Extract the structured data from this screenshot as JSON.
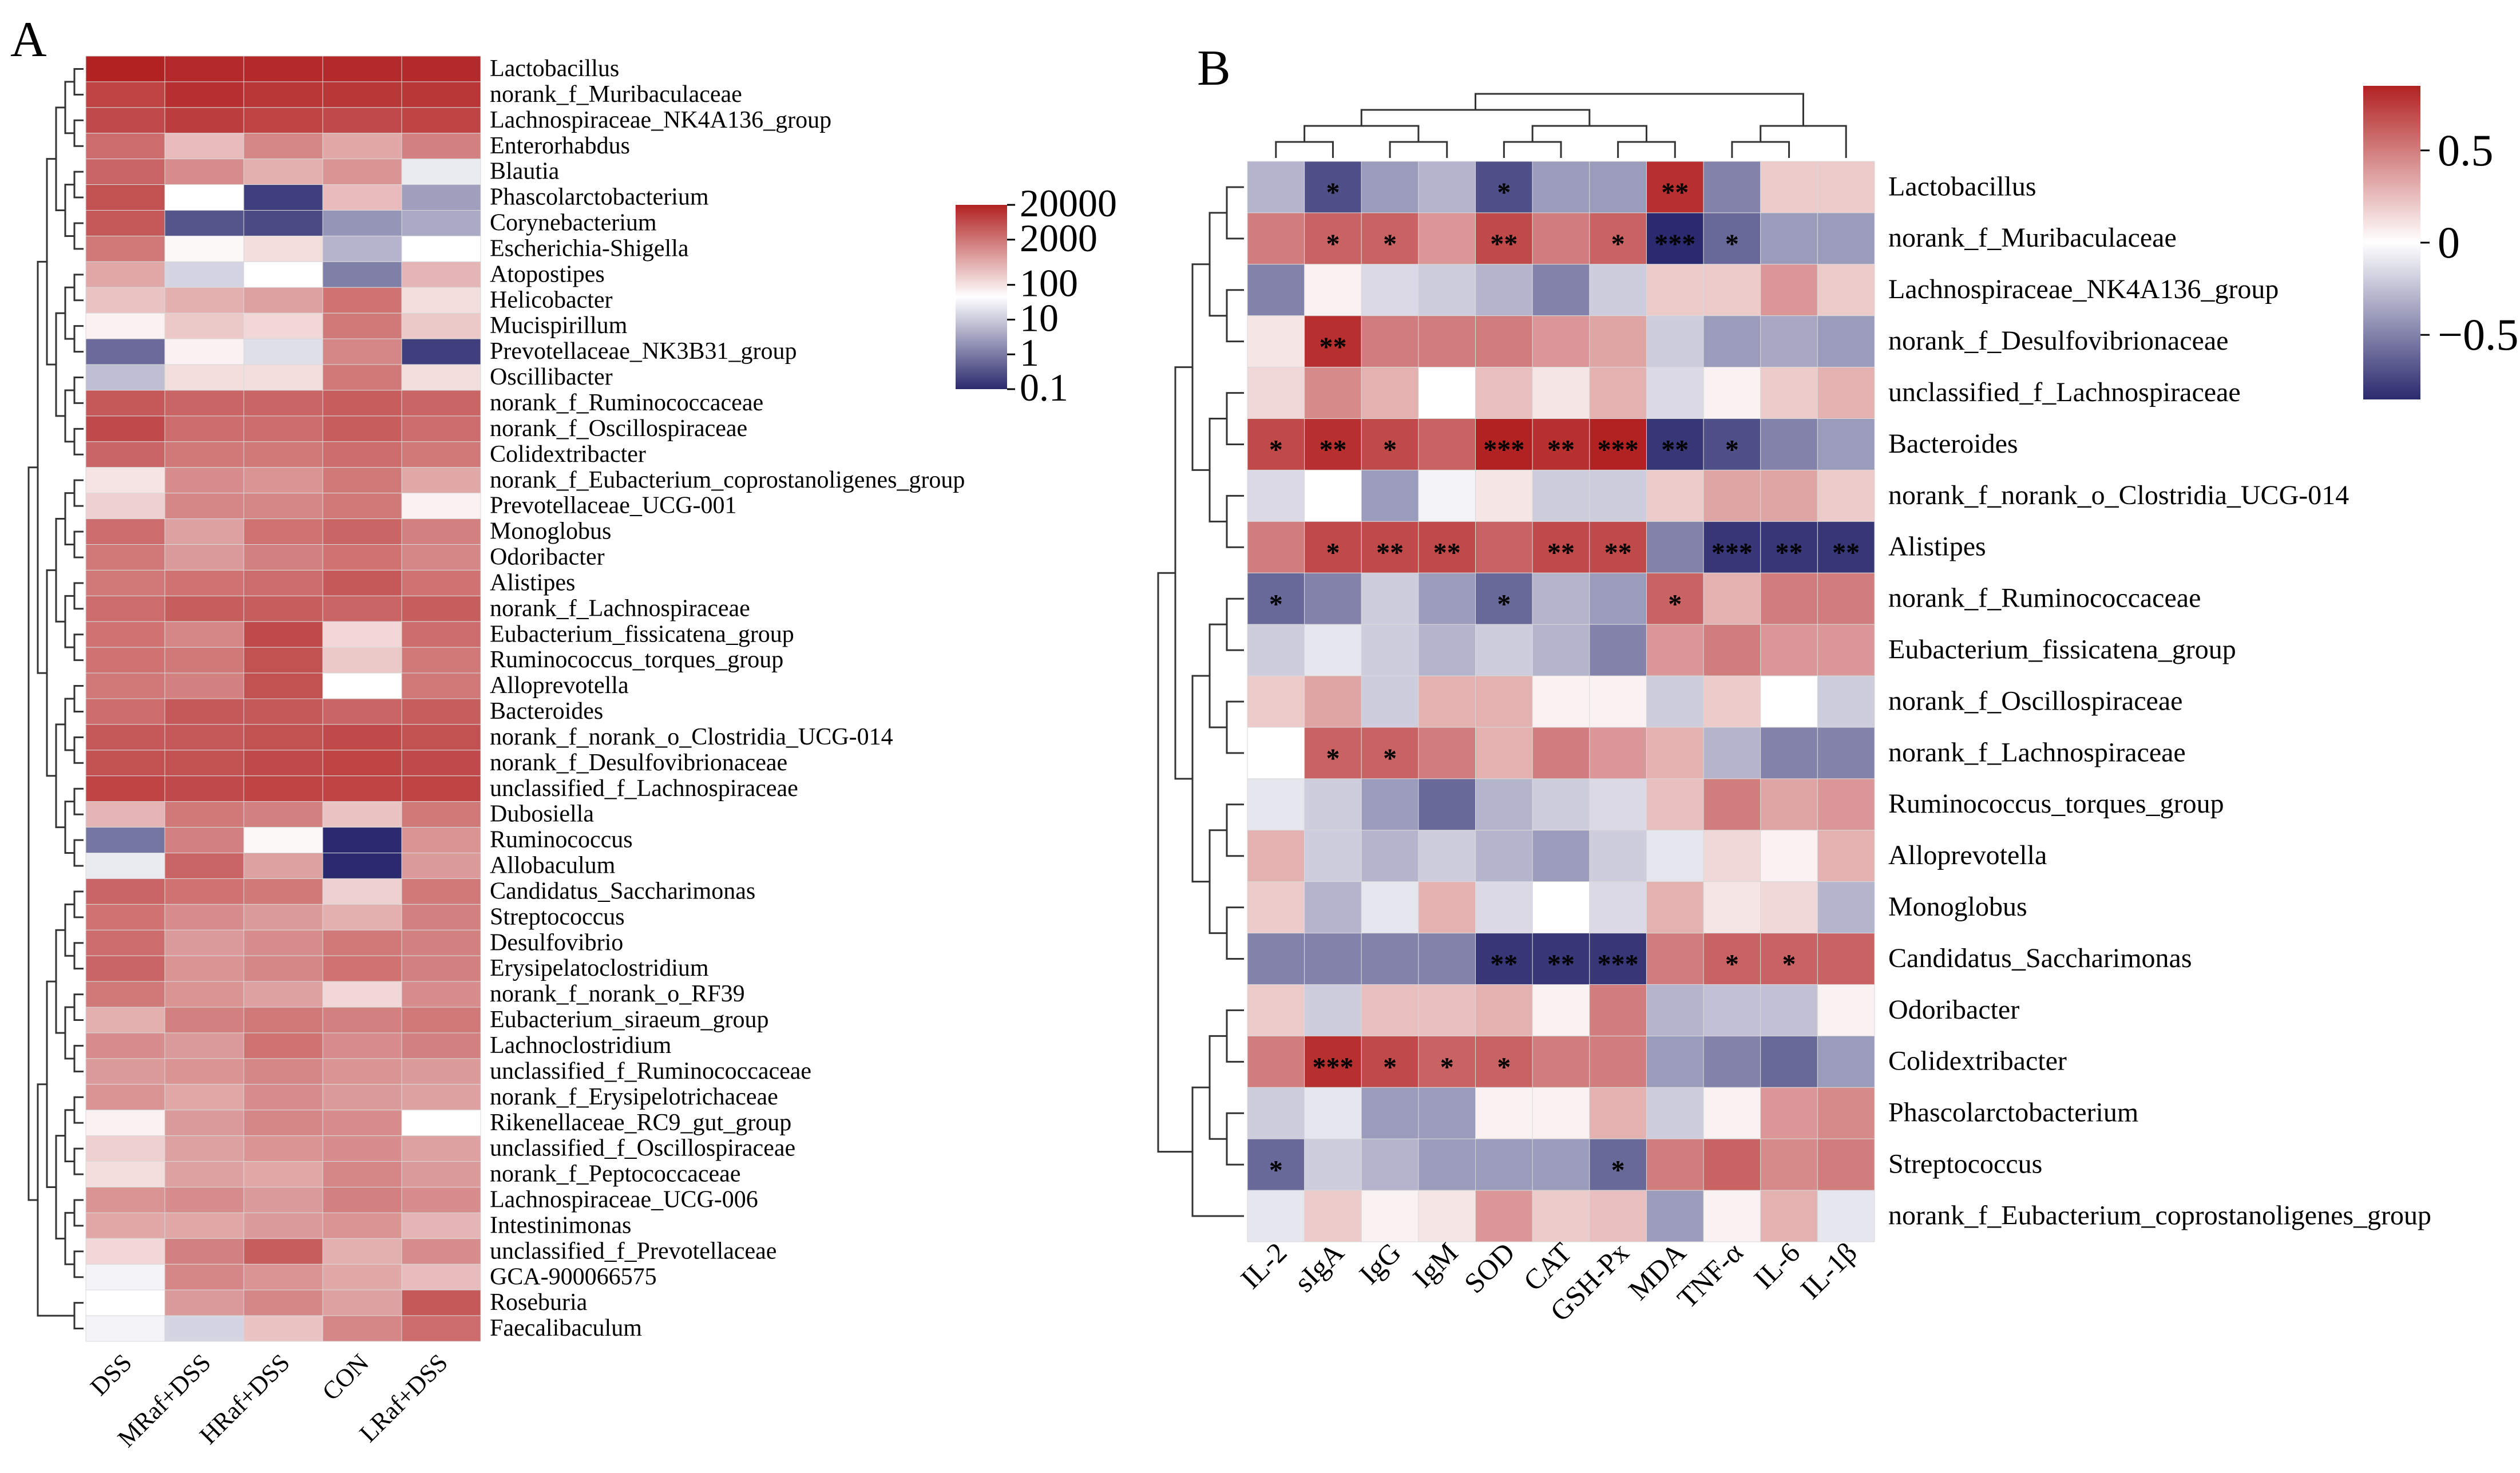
{
  "chart_data": [
    {
      "panel": "A",
      "type": "heatmap",
      "title": "",
      "columns": [
        "DSS",
        "MRaf+DSS",
        "HRaf+DSS",
        "CON",
        "LRaf+DSS"
      ],
      "rows": [
        "Lactobacillus",
        "norank_f_Muribaculaceae",
        "Lachnospiraceae_NK4A136_group",
        "Enterorhabdus",
        "Blautia",
        "Phascolarctobacterium",
        "Corynebacterium",
        "Escherichia-Shigella",
        "Atopostipes",
        "Helicobacter",
        "Mucispirillum",
        "Prevotellaceae_NK3B31_group",
        "Oscillibacter",
        "norank_f_Ruminococcaceae",
        "norank_f_Oscillospiraceae",
        "Colidextribacter",
        "norank_f_Eubacterium_coprostanoligenes_group",
        "Prevotellaceae_UCG-001",
        "Monoglobus",
        "Odoribacter",
        "Alistipes",
        "norank_f_Lachnospiraceae",
        "Eubacterium_fissicatena_group",
        "Ruminococcus_torques_group",
        "Alloprevotella",
        "Bacteroides",
        "norank_f_norank_o_Clostridia_UCG-014",
        "norank_f_Desulfovibrionaceae",
        "unclassified_f_Lachnospiraceae",
        "Dubosiella",
        "Ruminococcus",
        "Allobaculum",
        "Candidatus_Saccharimonas",
        "Streptococcus",
        "Desulfovibrio",
        "Erysipelatoclostridium",
        "norank_f_norank_o_RF39",
        "Eubacterium_siraeum_group",
        "Lachnoclostridium",
        "unclassified_f_Ruminococcaceae",
        "norank_f_Erysipelotrichaceae",
        "Rikenellaceae_RC9_gut_group",
        "unclassified_f_Oscillospiraceae",
        "norank_f_Peptococcaceae",
        "Lachnospiraceae_UCG-006",
        "Intestinimonas",
        "unclassified_f_Prevotellaceae",
        "GCA-900066575",
        "Roseburia",
        "Faecalibaculum"
      ],
      "values_log10": [
        [
          4.3,
          4.2,
          4.2,
          4.2,
          4.2
        ],
        [
          3.8,
          4.1,
          4.0,
          4.0,
          4.0
        ],
        [
          3.7,
          3.9,
          3.8,
          3.7,
          3.8
        ],
        [
          3.2,
          2.0,
          2.8,
          2.3,
          2.9
        ],
        [
          3.3,
          2.7,
          2.2,
          2.6,
          0.8
        ],
        [
          3.6,
          1.0,
          -0.8,
          2.0,
          0.1
        ],
        [
          3.5,
          -0.6,
          -0.7,
          0.0,
          0.2
        ],
        [
          3.0,
          1.1,
          1.5,
          0.3,
          1.0
        ],
        [
          2.3,
          0.6,
          1.0,
          -0.2,
          2.1
        ],
        [
          1.9,
          2.2,
          2.4,
          3.1,
          1.5
        ],
        [
          1.2,
          1.8,
          1.6,
          3.0,
          1.8
        ],
        [
          -0.4,
          1.2,
          0.7,
          2.8,
          -0.8
        ],
        [
          0.4,
          1.5,
          1.5,
          3.0,
          1.5
        ],
        [
          3.5,
          3.3,
          3.3,
          3.4,
          3.3
        ],
        [
          3.7,
          3.2,
          3.2,
          3.4,
          3.2
        ],
        [
          3.3,
          3.0,
          3.0,
          3.2,
          3.0
        ],
        [
          1.4,
          2.7,
          2.6,
          3.0,
          2.3
        ],
        [
          1.7,
          2.8,
          2.8,
          3.0,
          1.2
        ],
        [
          3.2,
          2.4,
          3.1,
          3.3,
          2.9
        ],
        [
          3.0,
          2.5,
          2.9,
          3.1,
          2.8
        ],
        [
          3.0,
          3.1,
          3.2,
          3.5,
          3.1
        ],
        [
          3.2,
          3.4,
          3.4,
          3.3,
          3.4
        ],
        [
          3.1,
          2.8,
          3.7,
          1.6,
          3.2
        ],
        [
          3.1,
          3.0,
          3.6,
          1.8,
          3.0
        ],
        [
          3.0,
          2.9,
          3.6,
          1.0,
          3.0
        ],
        [
          3.2,
          3.5,
          3.5,
          3.3,
          3.4
        ],
        [
          3.5,
          3.5,
          3.6,
          3.7,
          3.6
        ],
        [
          3.6,
          3.6,
          3.7,
          3.8,
          3.7
        ],
        [
          3.8,
          3.7,
          3.8,
          3.8,
          3.8
        ],
        [
          2.1,
          3.0,
          2.9,
          1.9,
          3.0
        ],
        [
          -0.3,
          2.9,
          1.1,
          -1.0,
          2.6
        ],
        [
          0.8,
          3.3,
          2.4,
          -1.0,
          2.5
        ],
        [
          3.3,
          3.1,
          3.0,
          1.7,
          3.0
        ],
        [
          3.1,
          2.7,
          2.5,
          2.2,
          2.9
        ],
        [
          3.2,
          2.5,
          2.7,
          3.0,
          2.9
        ],
        [
          3.3,
          2.6,
          2.8,
          3.1,
          2.9
        ],
        [
          3.0,
          2.6,
          2.4,
          1.6,
          2.7
        ],
        [
          2.2,
          2.9,
          3.0,
          2.9,
          3.0
        ],
        [
          2.7,
          2.5,
          3.1,
          2.7,
          2.9
        ],
        [
          2.5,
          2.6,
          2.8,
          2.6,
          2.5
        ],
        [
          2.6,
          2.3,
          2.7,
          2.5,
          2.4
        ],
        [
          1.2,
          2.5,
          2.8,
          2.7,
          1.0
        ],
        [
          1.7,
          2.4,
          2.6,
          2.7,
          2.4
        ],
        [
          1.5,
          2.4,
          2.3,
          2.8,
          2.5
        ],
        [
          2.6,
          2.7,
          2.5,
          2.9,
          2.7
        ],
        [
          2.3,
          2.3,
          2.5,
          2.6,
          2.1
        ],
        [
          1.6,
          2.9,
          3.4,
          2.2,
          2.7
        ],
        [
          0.9,
          2.8,
          2.6,
          2.3,
          2.0
        ],
        [
          1.0,
          2.5,
          2.8,
          2.4,
          3.5
        ],
        [
          0.9,
          0.6,
          1.9,
          2.8,
          3.2
        ]
      ],
      "legend": {
        "ticks": [
          "20000",
          "2000",
          "100",
          "10",
          "1",
          "0.1"
        ],
        "tick_log10": [
          4.3,
          3.3,
          2.0,
          1.0,
          0.0,
          -1.0
        ],
        "range_log10": [
          -1.0,
          4.3
        ],
        "colors": [
          "#2b2a6e",
          "#ffffff",
          "#b22222"
        ]
      }
    },
    {
      "panel": "B",
      "type": "heatmap",
      "title": "",
      "columns": [
        "IL-2",
        "sIgA",
        "IgG",
        "IgM",
        "SOD",
        "CAT",
        "GSH-Px",
        "MDA",
        "TNF-α",
        "IL-6",
        "IL-1β"
      ],
      "rows": [
        "Lactobacillus",
        "norank_f_Muribaculaceae",
        "Lachnospiraceae_NK4A136_group",
        "norank_f_Desulfovibrionaceae",
        "unclassified_f_Lachnospiraceae",
        "Bacteroides",
        "norank_f_norank_o_Clostridia_UCG-014",
        "Alistipes",
        "norank_f_Ruminococcaceae",
        "Eubacterium_fissicatena_group",
        "norank_f_Oscillospiraceae",
        "norank_f_Lachnospiraceae",
        "Ruminococcus_torques_group",
        "Alloprevotella",
        "Monoglobus",
        "Candidatus_Saccharimonas",
        "Odoribacter",
        "Colidextribacter",
        "Phascolarctobacterium",
        "Streptococcus",
        "norank_f_Eubacterium_coprostanoligenes_group"
      ],
      "values": [
        [
          -0.3,
          -0.7,
          -0.4,
          -0.3,
          -0.7,
          -0.4,
          -0.4,
          0.8,
          -0.5,
          0.2,
          0.2
        ],
        [
          0.5,
          0.6,
          0.6,
          0.4,
          0.7,
          0.5,
          0.6,
          -0.9,
          -0.6,
          -0.4,
          -0.4
        ],
        [
          -0.5,
          0.05,
          -0.15,
          -0.2,
          -0.3,
          -0.5,
          -0.2,
          0.2,
          0.2,
          0.4,
          0.2
        ],
        [
          0.1,
          0.8,
          0.5,
          0.5,
          0.5,
          0.4,
          0.35,
          -0.2,
          -0.4,
          -0.35,
          -0.4
        ],
        [
          0.15,
          0.45,
          0.3,
          0.0,
          0.25,
          0.1,
          0.3,
          -0.15,
          0.05,
          0.2,
          0.3
        ],
        [
          0.7,
          0.8,
          0.7,
          0.6,
          0.85,
          0.8,
          0.85,
          -0.8,
          -0.7,
          -0.5,
          -0.4
        ],
        [
          -0.15,
          0.0,
          -0.4,
          -0.05,
          0.1,
          -0.2,
          -0.2,
          0.2,
          0.35,
          0.35,
          0.2
        ],
        [
          0.5,
          0.7,
          0.7,
          0.7,
          0.6,
          0.7,
          0.7,
          -0.5,
          -0.8,
          -0.8,
          -0.8
        ],
        [
          -0.6,
          -0.5,
          -0.2,
          -0.4,
          -0.6,
          -0.3,
          -0.4,
          0.6,
          0.3,
          0.5,
          0.5
        ],
        [
          -0.2,
          -0.1,
          -0.2,
          -0.3,
          -0.2,
          -0.3,
          -0.5,
          0.4,
          0.5,
          0.4,
          0.4
        ],
        [
          0.2,
          0.35,
          -0.2,
          0.3,
          0.3,
          0.05,
          0.05,
          -0.2,
          0.2,
          0.0,
          -0.2
        ],
        [
          0.0,
          0.6,
          0.6,
          0.5,
          0.3,
          0.5,
          0.4,
          0.3,
          -0.3,
          -0.5,
          -0.5
        ],
        [
          -0.1,
          -0.2,
          -0.4,
          -0.6,
          -0.3,
          -0.2,
          -0.15,
          0.25,
          0.5,
          0.35,
          0.4
        ],
        [
          0.3,
          -0.2,
          -0.3,
          -0.2,
          -0.3,
          -0.4,
          -0.2,
          -0.1,
          0.15,
          0.05,
          0.3
        ],
        [
          0.2,
          -0.3,
          -0.1,
          0.3,
          -0.15,
          0.0,
          -0.15,
          0.3,
          0.1,
          0.15,
          -0.3
        ],
        [
          -0.5,
          -0.5,
          -0.5,
          -0.5,
          -0.8,
          -0.8,
          -0.8,
          0.5,
          0.6,
          0.6,
          0.6
        ],
        [
          0.2,
          -0.2,
          0.25,
          0.25,
          0.3,
          0.05,
          0.5,
          -0.3,
          -0.25,
          -0.25,
          0.05
        ],
        [
          0.5,
          0.8,
          0.7,
          0.6,
          0.6,
          0.5,
          0.5,
          -0.4,
          -0.5,
          -0.6,
          -0.4
        ],
        [
          -0.2,
          -0.1,
          -0.4,
          -0.4,
          0.05,
          0.05,
          0.3,
          -0.2,
          0.05,
          0.4,
          0.45
        ],
        [
          -0.6,
          -0.2,
          -0.3,
          -0.4,
          -0.4,
          -0.4,
          -0.6,
          0.5,
          0.6,
          0.45,
          0.5
        ],
        [
          -0.1,
          0.2,
          0.05,
          0.1,
          0.4,
          0.2,
          0.25,
          -0.4,
          0.05,
          0.3,
          -0.1
        ]
      ],
      "significance": [
        [
          "",
          "*",
          "",
          "",
          "*",
          "",
          "",
          "**",
          "",
          "",
          ""
        ],
        [
          "",
          "*",
          "*",
          "",
          "**",
          "",
          "*",
          "***",
          "*",
          "",
          ""
        ],
        [
          "",
          "",
          "",
          "",
          "",
          "",
          "",
          "",
          "",
          "",
          ""
        ],
        [
          "",
          "**",
          "",
          "",
          "",
          "",
          "",
          "",
          "",
          "",
          ""
        ],
        [
          "",
          "",
          "",
          "",
          "",
          "",
          "",
          "",
          "",
          "",
          ""
        ],
        [
          "*",
          "**",
          "*",
          "",
          "***",
          "**",
          "***",
          "**",
          "*",
          "",
          ""
        ],
        [
          "",
          "",
          "",
          "",
          "",
          "",
          "",
          "",
          "",
          "",
          ""
        ],
        [
          "",
          "*",
          "**",
          "**",
          "",
          "**",
          "**",
          "",
          "***",
          "**",
          "**"
        ],
        [
          "*",
          "",
          "",
          "",
          "*",
          "",
          "",
          "*",
          "",
          "",
          ""
        ],
        [
          "",
          "",
          "",
          "",
          "",
          "",
          "",
          "",
          "",
          "",
          ""
        ],
        [
          "",
          "",
          "",
          "",
          "",
          "",
          "",
          "",
          "",
          "",
          ""
        ],
        [
          "",
          "*",
          "*",
          "",
          "",
          "",
          "",
          "",
          "",
          "",
          ""
        ],
        [
          "",
          "",
          "",
          "",
          "",
          "",
          "",
          "",
          "",
          "",
          ""
        ],
        [
          "",
          "",
          "",
          "",
          "",
          "",
          "",
          "",
          "",
          "",
          ""
        ],
        [
          "",
          "",
          "",
          "",
          "",
          "",
          "",
          "",
          "",
          "",
          ""
        ],
        [
          "",
          "",
          "",
          "",
          "**",
          "**",
          "***",
          "",
          "*",
          "*",
          ""
        ],
        [
          "",
          "",
          "",
          "",
          "",
          "",
          "",
          "",
          "",
          "",
          ""
        ],
        [
          "",
          "***",
          "*",
          "*",
          "*",
          "",
          "",
          "",
          "",
          "",
          ""
        ],
        [
          "",
          "",
          "",
          "",
          "",
          "",
          "",
          "",
          "",
          "",
          ""
        ],
        [
          "*",
          "",
          "",
          "",
          "",
          "",
          "*",
          "",
          "",
          "",
          ""
        ],
        [
          "",
          "",
          "",
          "",
          "",
          "",
          "",
          "",
          "",
          "",
          ""
        ]
      ],
      "legend": {
        "ticks": [
          "0.5",
          "0",
          "−0.5"
        ],
        "tick_values": [
          0.5,
          0,
          -0.5
        ],
        "range": [
          -0.85,
          0.85
        ],
        "colors": [
          "#2b2a6e",
          "#ffffff",
          "#b22222"
        ]
      }
    }
  ]
}
